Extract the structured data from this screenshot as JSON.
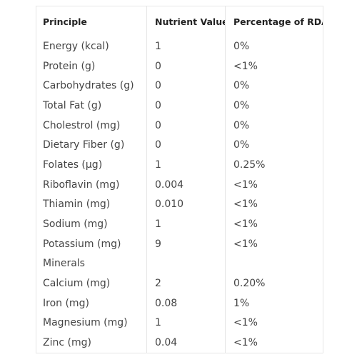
{
  "table": {
    "header": [
      "Principle",
      "Nutrient Value",
      "Percentage of RDA"
    ],
    "rows": [
      [
        "Energy (kcal)",
        "1",
        "0%"
      ],
      [
        "Protein (g)",
        "0",
        "<1%"
      ],
      [
        "Carbohydrates (g)",
        "0",
        "0%"
      ],
      [
        "Total Fat (g)",
        "0",
        "0%"
      ],
      [
        "Cholestrol (mg)",
        "0",
        "0%"
      ],
      [
        "Dietary Fiber (g)",
        "0",
        "0%"
      ],
      [
        "Folates (µg)",
        "1",
        "0.25%"
      ],
      [
        "Riboflavin (mg)",
        "0.004",
        "<1%"
      ],
      [
        "Thiamin (mg)",
        "0.010",
        "<1%"
      ],
      [
        "Sodium (mg)",
        "1",
        "<1%"
      ],
      [
        "Potassium (mg)",
        "9",
        "<1%"
      ],
      [
        "Minerals"
      ],
      [
        "Calcium (mg)",
        "2",
        "0.20%"
      ],
      [
        "Iron (mg)",
        "0.08",
        "1%"
      ],
      [
        "Magnesium (mg)",
        "1",
        "<1%"
      ],
      [
        "Zinc (mg)",
        "0.04",
        "<1%"
      ]
    ]
  }
}
